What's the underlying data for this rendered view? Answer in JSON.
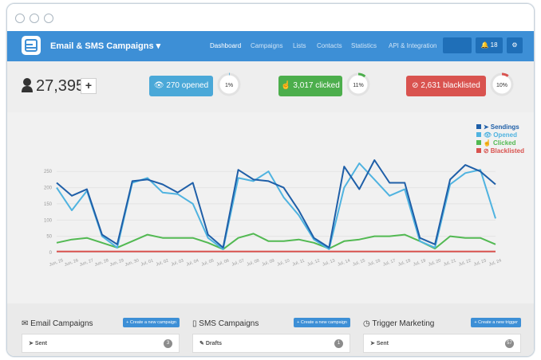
{
  "brand": {
    "title": "Email & SMS Campaigns ▾"
  },
  "nav": {
    "items": [
      "Dashboard",
      "Campaigns",
      "Lists",
      "Contacts",
      "Statistics",
      "API & Integration"
    ],
    "notifications": "18"
  },
  "stats": {
    "contacts": "27,395",
    "plus": "+",
    "opened": {
      "label": "270 opened",
      "percent": "1%",
      "value": 1,
      "color": "#4aa8d8"
    },
    "clicked": {
      "label": "3,017 clicked",
      "percent": "11%",
      "value": 11,
      "color": "#4cae4c"
    },
    "blacklisted": {
      "label": "2,631 blacklisted",
      "percent": "10%",
      "value": 10,
      "color": "#d9534f"
    }
  },
  "chart_data": {
    "type": "line",
    "categories": [
      "Jun, 25",
      "Jun, 26",
      "Jun, 27",
      "Jun, 28",
      "Jun, 29",
      "Jun, 30",
      "Jul, 01",
      "Jul, 02",
      "Jul, 03",
      "Jul, 04",
      "Jul, 05",
      "Jul, 06",
      "Jul, 07",
      "Jul, 08",
      "Jul, 09",
      "Jul, 10",
      "Jul, 11",
      "Jul, 12",
      "Jul, 13",
      "Jul, 14",
      "Jul, 15",
      "Jul, 16",
      "Jul, 17",
      "Jul, 18",
      "Jul, 19",
      "Jul, 20",
      "Jul, 21",
      "Jul, 22",
      "Jul, 23",
      "Jul, 24"
    ],
    "yticks": [
      0,
      50,
      100,
      150,
      200,
      250
    ],
    "ylim": [
      0,
      280
    ],
    "series": [
      {
        "name": "Sendings",
        "color": "#1f5fa8",
        "values": [
          215,
          175,
          195,
          55,
          25,
          220,
          225,
          210,
          185,
          215,
          55,
          15,
          255,
          225,
          220,
          200,
          130,
          45,
          15,
          265,
          195,
          285,
          215,
          215,
          45,
          25,
          225,
          270,
          250,
          210
        ]
      },
      {
        "name": "Opened",
        "color": "#4fb3e0",
        "values": [
          200,
          130,
          190,
          50,
          15,
          215,
          230,
          185,
          180,
          150,
          45,
          10,
          230,
          220,
          250,
          170,
          115,
          40,
          10,
          200,
          275,
          225,
          175,
          195,
          35,
          15,
          210,
          245,
          255,
          105
        ]
      },
      {
        "name": "Clicked",
        "color": "#52b952",
        "values": [
          30,
          40,
          45,
          30,
          15,
          35,
          55,
          45,
          45,
          45,
          30,
          10,
          45,
          58,
          35,
          35,
          40,
          30,
          12,
          35,
          40,
          50,
          50,
          55,
          35,
          12,
          50,
          45,
          45,
          25
        ]
      },
      {
        "name": "Blacklisted",
        "color": "#d9534f",
        "values": [
          3,
          3,
          3,
          3,
          3,
          3,
          3,
          3,
          3,
          3,
          3,
          3,
          3,
          3,
          3,
          3,
          3,
          3,
          3,
          3,
          3,
          3,
          3,
          3,
          3,
          3,
          3,
          3,
          3,
          3
        ]
      }
    ]
  },
  "legend": {
    "sendings": "Sendings",
    "opened": "Opened",
    "clicked": "Clicked",
    "blacklisted": "Blacklisted"
  },
  "panels": [
    {
      "title": "Email Campaigns",
      "button": "Create a new campaign",
      "row_label": "Sent",
      "row_count": "3"
    },
    {
      "title": "SMS Campaigns",
      "button": "Create a new campaign",
      "row_label": "Drafts",
      "row_count": "1"
    },
    {
      "title": "Trigger Marketing",
      "button": "Create a new trigger",
      "row_label": "Sent",
      "row_count": "57"
    }
  ]
}
